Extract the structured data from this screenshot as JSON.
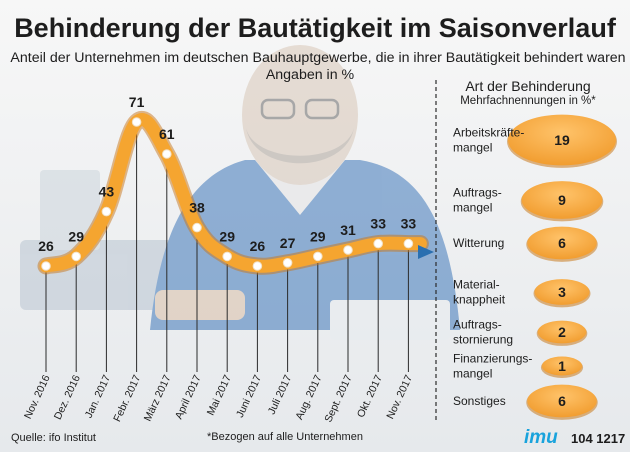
{
  "title": "Behinderung der Bautätigkeit im Saisonverlauf",
  "subtitle_line1": "Anteil der Unternehmen im deutschen Bauhauptgewerbe, die in ihrer Bautätigkeit behindert waren",
  "subtitle_line2": "Angaben in %",
  "source": "Quelle: ifo Institut",
  "footnote": "*Bezogen auf alle Unternehmen",
  "brand": "imu",
  "graphic_id": "104 1217",
  "colors": {
    "accent": "#f5a530",
    "title": "#1d1d1d",
    "marker": "#ffffff",
    "arrow": "#2a6fb0",
    "brand": "#19a3dc",
    "ellipse": "#f3a236"
  },
  "chart_data": [
    {
      "type": "line",
      "categories": [
        "Nov. 2016",
        "Dez. 2016",
        "Jan. 2017",
        "Febr. 2017",
        "März 2017",
        "April 2017",
        "Mai 2017",
        "Juni 2017",
        "Juli 2017",
        "Aug. 2017",
        "Sept. 2017",
        "Okt. 2017",
        "Nov. 2017"
      ],
      "values": [
        26,
        29,
        43,
        71,
        61,
        38,
        29,
        26,
        27,
        29,
        31,
        33,
        33
      ],
      "unit": "%",
      "ylim": [
        0,
        80
      ]
    },
    {
      "type": "bubble",
      "title": "Art der Behinderung",
      "subtitle": "Mehrfachnennungen in %*",
      "items": [
        {
          "label": [
            "Arbeitskräfte-",
            "mangel"
          ],
          "value": 19
        },
        {
          "label": [
            "Auftrags-",
            "mangel"
          ],
          "value": 9
        },
        {
          "label": [
            "Witterung"
          ],
          "value": 6
        },
        {
          "label": [
            "Material-",
            "knappheit"
          ],
          "value": 3
        },
        {
          "label": [
            "Auftrags-",
            "stornierung"
          ],
          "value": 2
        },
        {
          "label": [
            "Finanzierungs-",
            "mangel"
          ],
          "value": 1
        },
        {
          "label": [
            "Sonstiges"
          ],
          "value": 6
        }
      ]
    }
  ]
}
